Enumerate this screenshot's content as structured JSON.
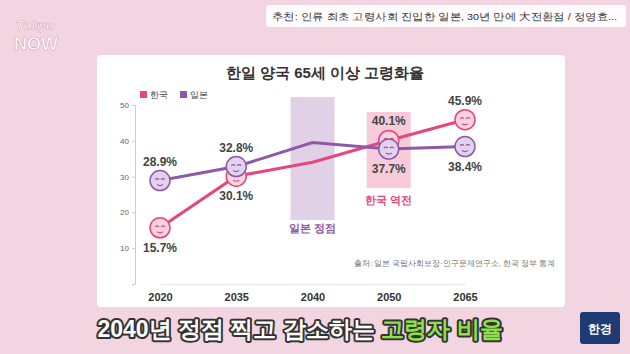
{
  "chart_data": {
    "type": "line",
    "title": "한일 양국 65세 이상 고령화율",
    "categories": [
      "2020",
      "2035",
      "2040",
      "2050",
      "2065"
    ],
    "series": [
      {
        "name": "한국",
        "color": "#e8457a",
        "marker": "face",
        "values": [
          15.7,
          30.1,
          34,
          40.1,
          45.9
        ],
        "value_labels": [
          "15.7%",
          "30.1%",
          null,
          "40.1%",
          "45.9%"
        ]
      },
      {
        "name": "일본",
        "color": "#8e5aa8",
        "marker": "face",
        "values": [
          28.9,
          32.8,
          39.5,
          37.7,
          38.4
        ],
        "value_labels": [
          "28.9%",
          "32.8%",
          null,
          "37.7%",
          "38.4%"
        ]
      }
    ],
    "ylim": [
      0,
      50
    ],
    "yticks": [
      10,
      20,
      30,
      40,
      50
    ],
    "grid": false,
    "legend": "top-left",
    "data_labels": true,
    "annotations": [
      {
        "text": "일본 정점",
        "category": "2040",
        "color": "#8e5aa8"
      },
      {
        "text": "한국 역전",
        "category": "2050",
        "color": "#e8457a"
      }
    ],
    "source": "출처: 일본 국립사회보장·인구문제연구소, 한국 정부 통계"
  },
  "overlay": {
    "logo": [
      "Tokyo",
      "NOW"
    ],
    "recommendation": "추천: 인류 최초 고령사회 진입한 일본, 30년 만에 大전환점 / 정영효...",
    "caption": [
      "2040년 정점 찍고 감소하는 ",
      "고령자 비율"
    ],
    "channel": "한경"
  }
}
